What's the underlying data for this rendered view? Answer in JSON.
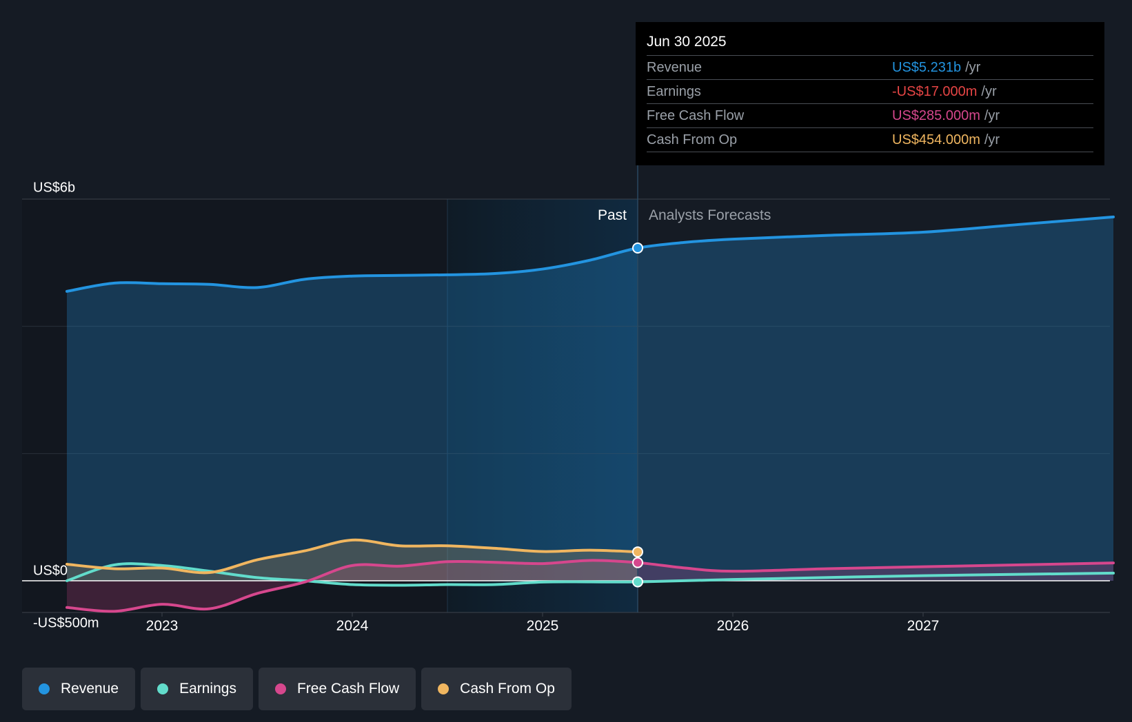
{
  "tooltip": {
    "date": "Jun 30 2025",
    "rows": [
      {
        "label": "Revenue",
        "value": "US$5.231b",
        "unit": "/yr",
        "color": "#2394e0"
      },
      {
        "label": "Earnings",
        "value": "-US$17.000m",
        "unit": "/yr",
        "color": "#e64545"
      },
      {
        "label": "Free Cash Flow",
        "value": "US$285.000m",
        "unit": "/yr",
        "color": "#d6478d"
      },
      {
        "label": "Cash From Op",
        "value": "US$454.000m",
        "unit": "/yr",
        "color": "#f0b660"
      }
    ]
  },
  "section_labels": {
    "past": "Past",
    "forecast": "Analysts Forecasts"
  },
  "legend": [
    {
      "label": "Revenue",
      "color": "#2394e0"
    },
    {
      "label": "Earnings",
      "color": "#62dccb"
    },
    {
      "label": "Free Cash Flow",
      "color": "#d6478d"
    },
    {
      "label": "Cash From Op",
      "color": "#f0b660"
    }
  ],
  "chart_data": {
    "type": "line",
    "ylim": [
      -500,
      6000
    ],
    "y_tick_labels": [
      {
        "value": 6000,
        "label": "US$6b"
      },
      {
        "value": 0,
        "label": "US$0"
      },
      {
        "value": -500,
        "label": "-US$500m"
      }
    ],
    "x_ticks": [
      2023,
      2024,
      2025,
      2026,
      2027
    ],
    "xlim": [
      2022.33,
      2028.05
    ],
    "past_end": 2025.5,
    "highlight_start": 2024.5,
    "series": [
      {
        "name": "Revenue",
        "color": "#2394e0",
        "fill": true,
        "points": [
          [
            2022.5,
            4550
          ],
          [
            2022.75,
            4680
          ],
          [
            2023.0,
            4670
          ],
          [
            2023.25,
            4660
          ],
          [
            2023.5,
            4610
          ],
          [
            2023.75,
            4740
          ],
          [
            2024.0,
            4790
          ],
          [
            2024.25,
            4800
          ],
          [
            2024.5,
            4810
          ],
          [
            2024.75,
            4830
          ],
          [
            2025.0,
            4900
          ],
          [
            2025.25,
            5040
          ],
          [
            2025.5,
            5231
          ],
          [
            2025.75,
            5320
          ],
          [
            2026.0,
            5370
          ],
          [
            2026.5,
            5430
          ],
          [
            2027.0,
            5480
          ],
          [
            2027.5,
            5600
          ],
          [
            2028.0,
            5720
          ]
        ]
      },
      {
        "name": "Earnings",
        "color": "#62dccb",
        "fill": false,
        "points": [
          [
            2022.5,
            0
          ],
          [
            2022.75,
            250
          ],
          [
            2023.0,
            240
          ],
          [
            2023.25,
            150
          ],
          [
            2023.5,
            50
          ],
          [
            2023.75,
            0
          ],
          [
            2024.0,
            -60
          ],
          [
            2024.25,
            -70
          ],
          [
            2024.5,
            -60
          ],
          [
            2024.75,
            -60
          ],
          [
            2025.0,
            -20
          ],
          [
            2025.25,
            -17
          ],
          [
            2025.5,
            -17
          ],
          [
            2026.0,
            20
          ],
          [
            2027.0,
            80
          ],
          [
            2028.0,
            120
          ]
        ]
      },
      {
        "name": "Free Cash Flow",
        "color": "#d6478d",
        "fill": true,
        "points": [
          [
            2022.5,
            -420
          ],
          [
            2022.75,
            -480
          ],
          [
            2023.0,
            -370
          ],
          [
            2023.25,
            -440
          ],
          [
            2023.5,
            -200
          ],
          [
            2023.75,
            -20
          ],
          [
            2024.0,
            240
          ],
          [
            2024.25,
            230
          ],
          [
            2024.5,
            300
          ],
          [
            2024.75,
            290
          ],
          [
            2025.0,
            270
          ],
          [
            2025.25,
            320
          ],
          [
            2025.5,
            285
          ],
          [
            2025.75,
            200
          ],
          [
            2026.0,
            150
          ],
          [
            2026.5,
            190
          ],
          [
            2027.0,
            220
          ],
          [
            2028.0,
            280
          ]
        ]
      },
      {
        "name": "Cash From Op",
        "color": "#f0b660",
        "fill": true,
        "points": [
          [
            2022.5,
            260
          ],
          [
            2022.75,
            190
          ],
          [
            2023.0,
            200
          ],
          [
            2023.25,
            130
          ],
          [
            2023.5,
            330
          ],
          [
            2023.75,
            470
          ],
          [
            2024.0,
            640
          ],
          [
            2024.25,
            550
          ],
          [
            2024.5,
            550
          ],
          [
            2024.75,
            510
          ],
          [
            2025.0,
            460
          ],
          [
            2025.25,
            480
          ],
          [
            2025.5,
            454
          ]
        ]
      }
    ]
  }
}
